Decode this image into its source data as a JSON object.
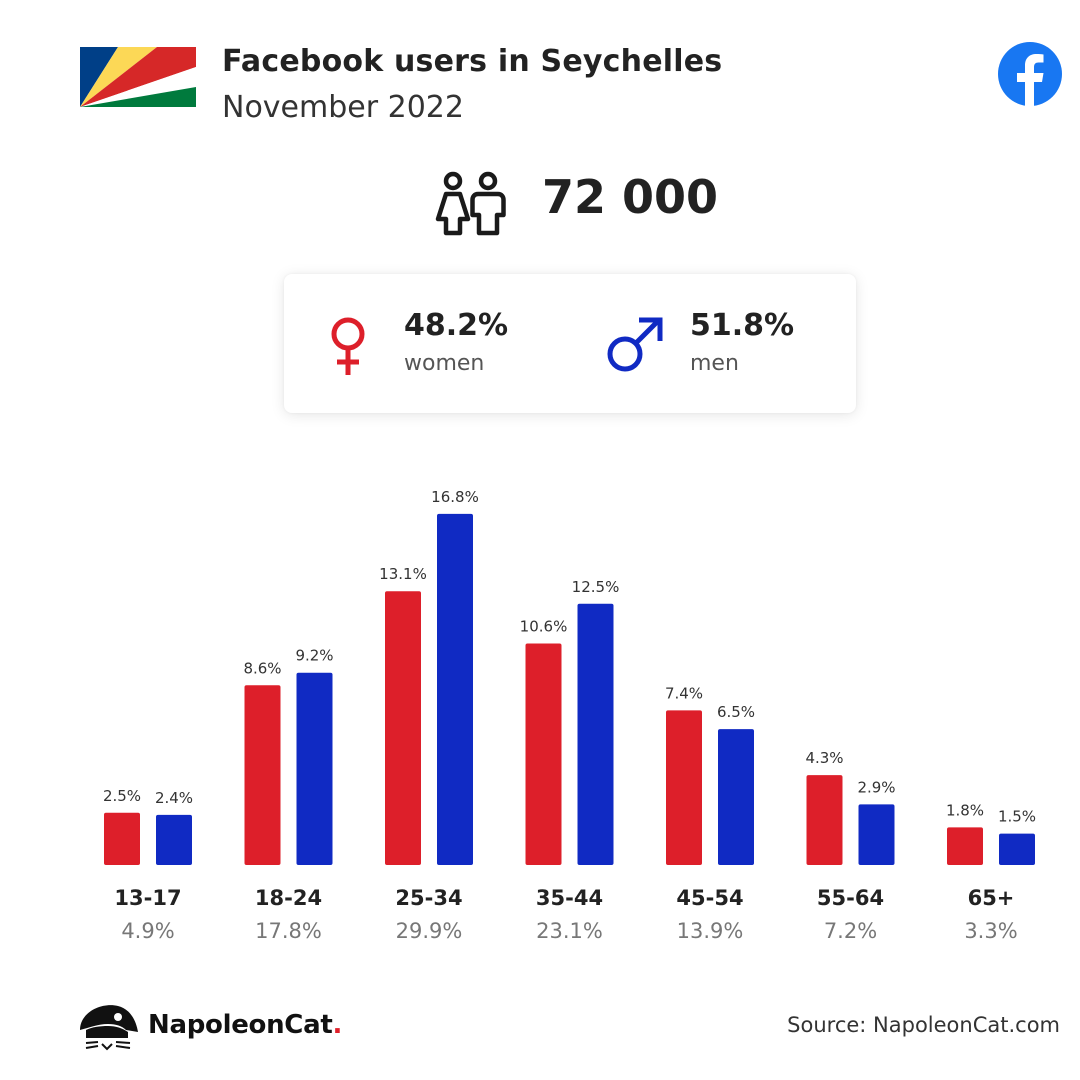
{
  "header": {
    "title": "Facebook users in Seychelles",
    "subtitle": "November 2022"
  },
  "flag": {
    "colors": [
      "#003f87",
      "#fcd856",
      "#d62828",
      "#ffffff",
      "#007a3d"
    ],
    "icon": "seychelles-flag-icon"
  },
  "brand_icon": "facebook-icon",
  "summary": {
    "total_users": "72 000",
    "women": {
      "percent": "48.2%",
      "label": "women",
      "icon": "female-symbol-icon"
    },
    "men": {
      "percent": "51.8%",
      "label": "men",
      "icon": "male-symbol-icon"
    }
  },
  "colors": {
    "women": "#dd1f2a",
    "men": "#102ac3",
    "facebook": "#1877f2"
  },
  "chart_data": {
    "type": "bar",
    "categories": [
      "13-17",
      "18-24",
      "25-34",
      "35-44",
      "45-54",
      "55-64",
      "65+"
    ],
    "category_totals": [
      "4.9%",
      "17.8%",
      "29.9%",
      "23.1%",
      "13.9%",
      "7.2%",
      "3.3%"
    ],
    "series": [
      {
        "name": "women",
        "values": [
          2.5,
          8.6,
          13.1,
          10.6,
          7.4,
          4.3,
          1.8
        ],
        "labels": [
          "2.5%",
          "8.6%",
          "13.1%",
          "10.6%",
          "7.4%",
          "4.3%",
          "1.8%"
        ]
      },
      {
        "name": "men",
        "values": [
          2.4,
          9.2,
          16.8,
          12.5,
          6.5,
          2.9,
          1.5
        ],
        "labels": [
          "2.4%",
          "9.2%",
          "16.8%",
          "12.5%",
          "6.5%",
          "2.9%",
          "1.5%"
        ]
      }
    ],
    "grid": false,
    "legend": "none"
  },
  "footer": {
    "logo_name": "NapoleonCat",
    "logo_dot": ".",
    "source": "Source: NapoleonCat.com"
  }
}
